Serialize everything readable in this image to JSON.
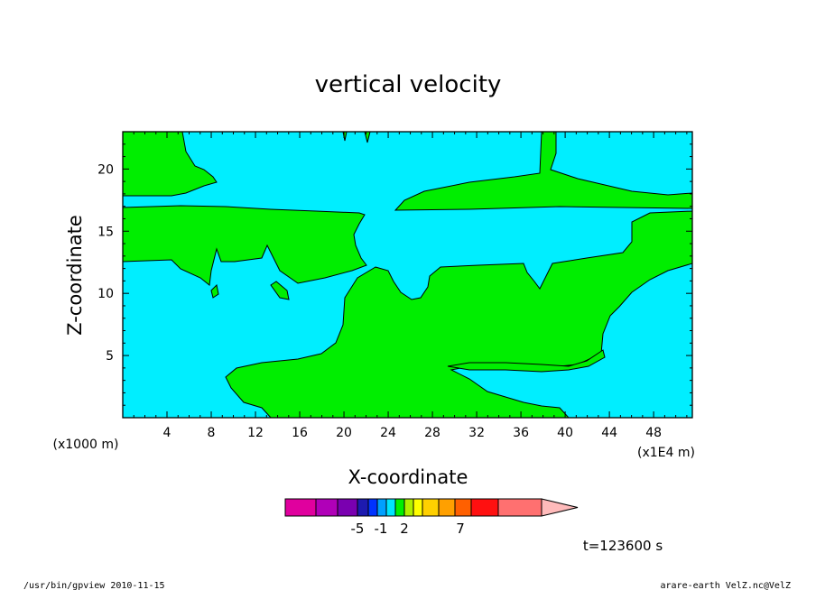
{
  "chart_data": {
    "type": "heatmap",
    "title": "vertical velocity",
    "xlabel": "X-coordinate",
    "ylabel": "Z-coordinate",
    "x_unit_left": "(x1000 m)",
    "x_unit_right": "(x1E4 m)",
    "xlim": [
      0,
      51.5
    ],
    "ylim": [
      0,
      23
    ],
    "x_ticks": [
      "4",
      "8",
      "12",
      "16",
      "20",
      "24",
      "28",
      "32",
      "36",
      "40",
      "44",
      "48"
    ],
    "x_tick_values": [
      4,
      8,
      12,
      16,
      20,
      24,
      28,
      32,
      36,
      40,
      44,
      48
    ],
    "y_ticks": [
      "5",
      "10",
      "15",
      "20"
    ],
    "y_tick_values": [
      5,
      10,
      15,
      20
    ],
    "colorbar": {
      "labels": [
        "-5",
        "-1",
        "2",
        "7"
      ],
      "colors": [
        "#e0009e",
        "#b000b8",
        "#7a00b0",
        "#1d1ab0",
        "#0033ff",
        "#00a0ff",
        "#00e5ff",
        "#00f000",
        "#b0f000",
        "#ffff00",
        "#ffd000",
        "#ffa000",
        "#ff6000",
        "#ff1010",
        "#ff7070",
        "#ffbbbb"
      ]
    },
    "regions": [
      {
        "color": "#00eeff",
        "meaning": "background"
      },
      {
        "color": "#00ee00",
        "meaning": "contour band"
      }
    ],
    "time_label": "t=123600 s"
  },
  "footer": {
    "left": "/usr/bin/gpview   2010-11-15",
    "right": "arare-earth_VelZ.nc@VelZ"
  }
}
